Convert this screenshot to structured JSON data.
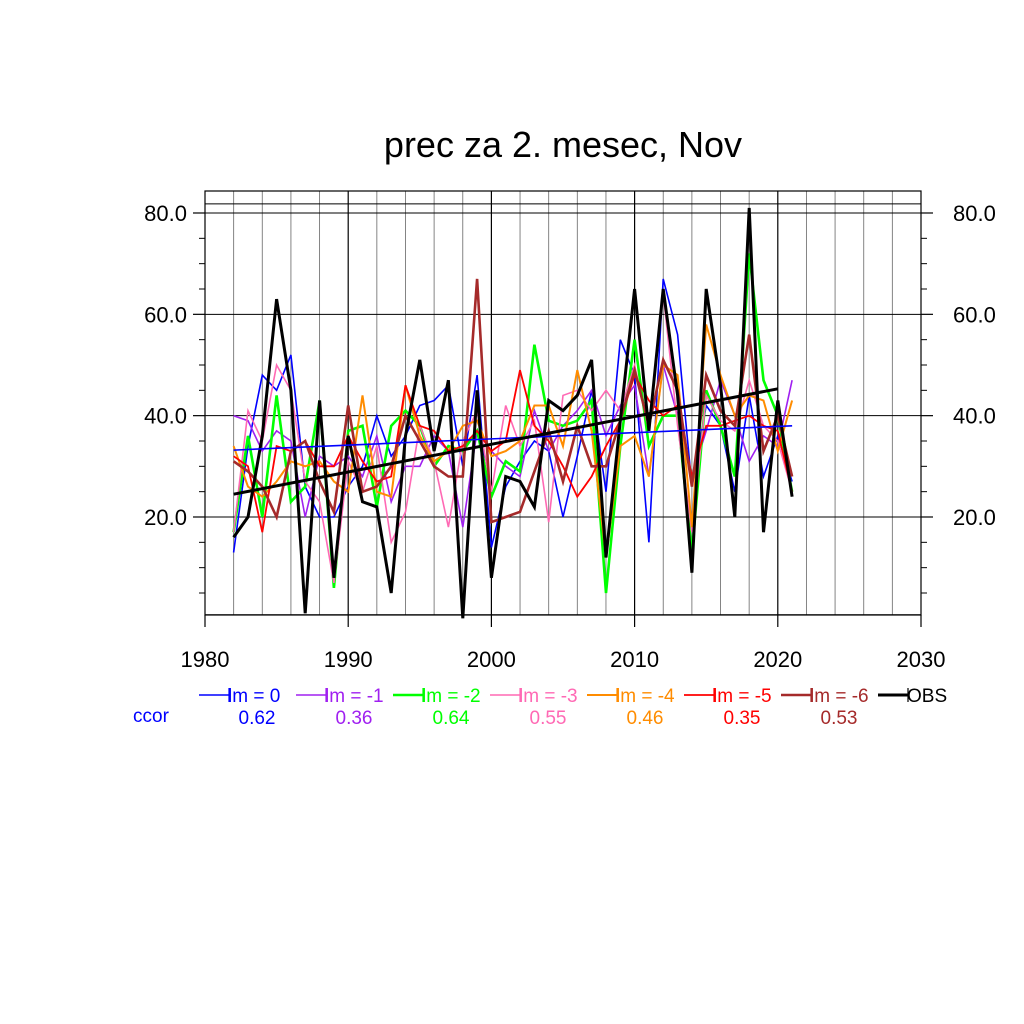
{
  "chart_data": {
    "type": "line",
    "title": "prec za 2. mesec, Nov",
    "xlim": [
      1980,
      2030
    ],
    "ylim": [
      0,
      84
    ],
    "x_ticks": [
      "1980",
      "1990",
      "2000",
      "2010",
      "2020",
      "2030"
    ],
    "y_ticks": [
      "20.0",
      "40.0",
      "60.0",
      "80.0"
    ],
    "x_tick_values": [
      1980,
      1990,
      2000,
      2010,
      2020,
      2030
    ],
    "y_tick_values": [
      20,
      40,
      60,
      80
    ],
    "grid": true,
    "legend_position": "bottom",
    "ccor_label": "ccor",
    "years": [
      1982,
      1983,
      1984,
      1985,
      1986,
      1987,
      1988,
      1989,
      1990,
      1991,
      1992,
      1993,
      1994,
      1995,
      1996,
      1997,
      1998,
      1999,
      2000,
      2001,
      2002,
      2003,
      2004,
      2005,
      2006,
      2007,
      2008,
      2009,
      2010,
      2011,
      2012,
      2013,
      2014,
      2015,
      2016,
      2017,
      2018,
      2019,
      2020,
      2021
    ],
    "series": [
      {
        "name": "lm = 0",
        "color": "#0000ff",
        "width": 1.6,
        "ccor": "0.62",
        "values": [
          13,
          34,
          48,
          45,
          52,
          26,
          20,
          20,
          26,
          30,
          40,
          32,
          36,
          42,
          43,
          46,
          30,
          48,
          14,
          26,
          31,
          35,
          33,
          20,
          32,
          45,
          25,
          55,
          48,
          15,
          67,
          56,
          26,
          42,
          38,
          25,
          44,
          28,
          36,
          27
        ]
      },
      {
        "name": "lm = -1",
        "color": "#a020f0",
        "width": 1.6,
        "ccor": "0.36",
        "values": [
          40,
          39,
          33,
          37,
          35,
          20,
          32,
          30,
          32,
          28,
          36,
          23,
          30,
          30,
          36,
          33,
          18,
          37,
          33,
          30,
          28,
          41,
          33,
          38,
          41,
          45,
          36,
          42,
          46,
          28,
          50,
          40,
          28,
          37,
          47,
          40,
          31,
          36,
          34,
          47
        ]
      },
      {
        "name": "lm = -2",
        "color": "#00ff00",
        "width": 2.6,
        "ccor": "0.64",
        "values": [
          17,
          36,
          20,
          44,
          23,
          26,
          43,
          6,
          37,
          38,
          22,
          38,
          41,
          38,
          30,
          34,
          33,
          37,
          24,
          31,
          29,
          54,
          39,
          38,
          39,
          43,
          5,
          34,
          55,
          34,
          40,
          40,
          13,
          45,
          38,
          28,
          72,
          47,
          40,
          25
        ]
      },
      {
        "name": "lm = -3",
        "color": "#ff69b4",
        "width": 1.6,
        "ccor": "0.55",
        "values": [
          17,
          41,
          35,
          50,
          45,
          27,
          23,
          7,
          31,
          25,
          34,
          15,
          21,
          38,
          31,
          18,
          35,
          41,
          25,
          42,
          34,
          39,
          19,
          44,
          45,
          41,
          45,
          41,
          50,
          37,
          64,
          38,
          17,
          44,
          39,
          37,
          47,
          38,
          35,
          25
        ]
      },
      {
        "name": "lm = -4",
        "color": "#ff8c00",
        "width": 2.0,
        "ccor": "0.46",
        "values": [
          34,
          26,
          24,
          27,
          31,
          30,
          31,
          27,
          25,
          44,
          25,
          24,
          46,
          36,
          31,
          33,
          38,
          39,
          32,
          33,
          35,
          42,
          42,
          34,
          49,
          37,
          12,
          34,
          36,
          28,
          50,
          48,
          18,
          58,
          48,
          40,
          44,
          43,
          33,
          43
        ]
      },
      {
        "name": "lm = -5",
        "color": "#ff0000",
        "width": 1.8,
        "ccor": "0.35",
        "values": [
          32,
          30,
          17,
          34,
          33,
          35,
          30,
          30,
          36,
          31,
          27,
          28,
          46,
          38,
          37,
          33,
          34,
          37,
          33,
          35,
          49,
          38,
          35,
          30,
          24,
          28,
          34,
          39,
          48,
          43,
          40,
          42,
          28,
          38,
          38,
          39,
          40,
          38,
          37,
          25
        ]
      },
      {
        "name": "lm = -6",
        "color": "#a52a2a",
        "width": 2.6,
        "ccor": "0.53",
        "values": [
          31,
          29,
          26,
          20,
          33,
          35,
          27,
          21,
          42,
          25,
          26,
          30,
          40,
          35,
          30,
          28,
          28,
          67,
          19,
          20,
          21,
          29,
          37,
          27,
          38,
          30,
          30,
          39,
          49,
          38,
          51,
          45,
          26,
          48,
          41,
          38,
          56,
          33,
          40,
          28
        ]
      },
      {
        "name": "OBS",
        "color": "#000000",
        "width": 3.0,
        "ccor": "",
        "values": [
          16,
          20,
          36,
          63,
          45,
          1,
          43,
          8,
          36,
          23,
          22,
          5,
          36,
          51,
          33,
          47,
          0,
          45,
          8,
          28,
          27,
          22,
          43,
          41,
          44,
          51,
          12,
          39,
          65,
          37,
          65,
          44,
          9,
          65,
          46,
          20,
          81,
          17,
          43,
          24
        ]
      }
    ],
    "trend_lines": [
      {
        "name": "lm = 0 trend",
        "color": "#0000ff",
        "width": 1.6,
        "x": [
          1982,
          2021
        ],
        "y": [
          33.2,
          38.0
        ]
      },
      {
        "name": "OBS trend",
        "color": "#000000",
        "width": 3.0,
        "x": [
          1982,
          2020
        ],
        "y": [
          24.5,
          45.3
        ]
      }
    ]
  }
}
